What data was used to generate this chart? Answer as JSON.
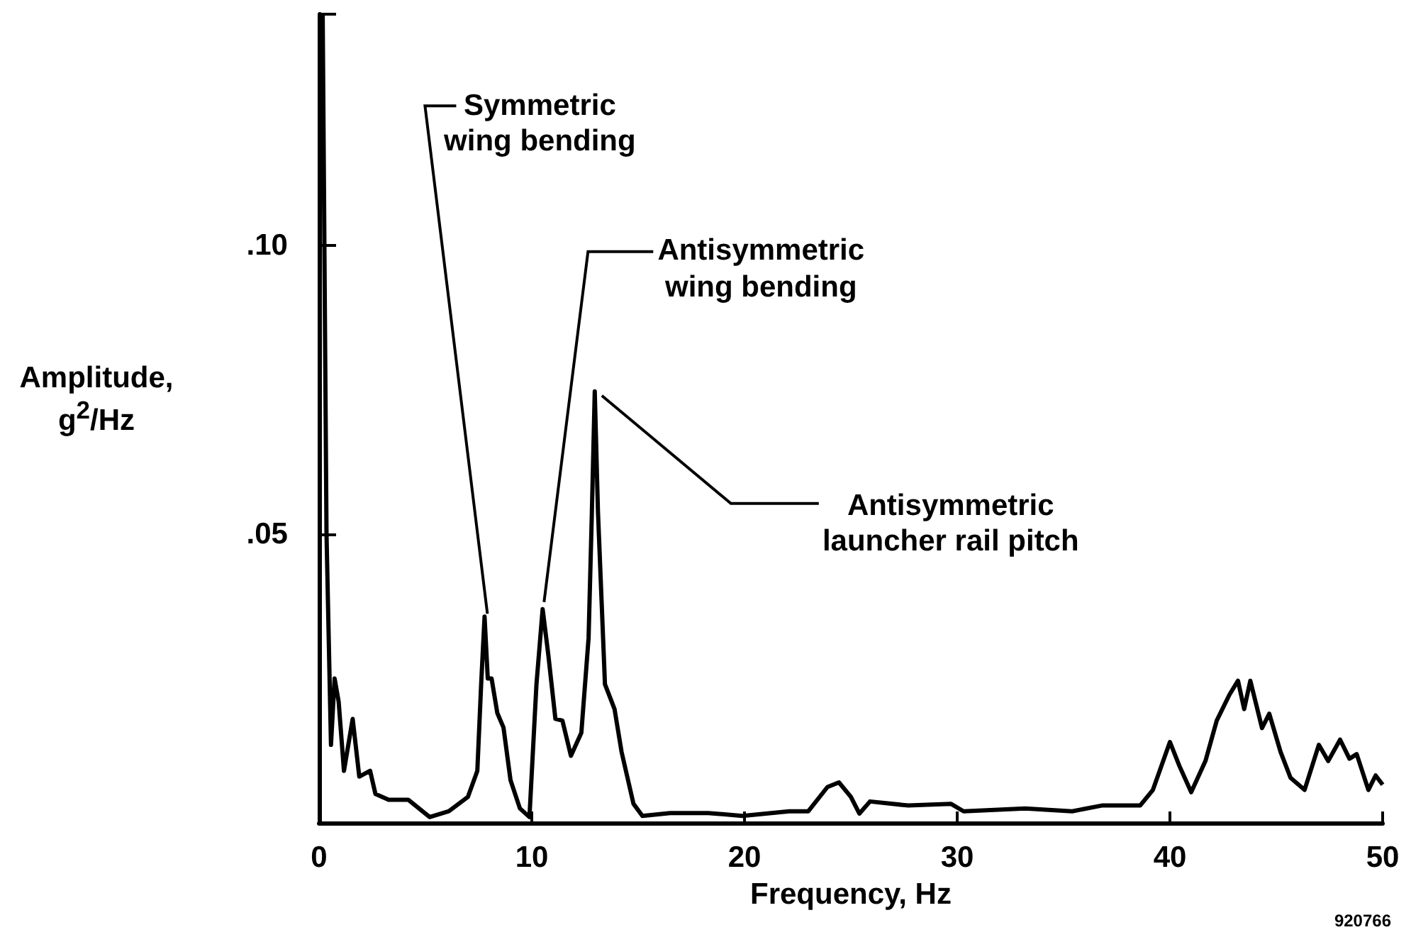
{
  "chart_data": {
    "type": "line",
    "xlabel": "Frequency, Hz",
    "ylabel": "Amplitude,\ng$^{2}$/Hz",
    "color": "#000000",
    "xlim": [
      0,
      50
    ],
    "xticks": [
      0,
      10,
      20,
      30,
      40,
      50
    ],
    "ylim": [
      0,
      0.14
    ],
    "yticks": [
      {
        "value": 0.05,
        "label": ".05"
      },
      {
        "value": 0.1,
        "label": ".10"
      },
      {
        "value": 0.14,
        "label": null
      }
    ],
    "x": [
      0.17,
      0.35,
      0.56,
      0.73,
      0.92,
      1.17,
      1.58,
      1.89,
      2.4,
      2.65,
      3.27,
      4.19,
      5.2,
      6.1,
      7.0,
      7.44,
      7.62,
      7.78,
      7.93,
      8.11,
      8.38,
      8.67,
      9.0,
      9.44,
      9.89,
      10.22,
      10.51,
      10.78,
      11.11,
      11.44,
      11.84,
      12.33,
      12.67,
      12.82,
      12.96,
      13.11,
      13.44,
      13.89,
      14.22,
      14.78,
      15.2,
      16.5,
      18.3,
      19.9,
      22.1,
      23.0,
      23.9,
      24.44,
      25.0,
      25.4,
      25.9,
      27.7,
      29.7,
      30.3,
      33.2,
      35.4,
      36.8,
      38.6,
      39.2,
      40.0,
      40.44,
      41.0,
      41.67,
      42.2,
      42.8,
      43.2,
      43.49,
      43.78,
      44.33,
      44.67,
      45.2,
      45.67,
      46.33,
      47.0,
      47.44,
      48.0,
      48.44,
      48.78,
      49.33,
      49.67,
      50
    ],
    "values": [
      0.14,
      0.05,
      0.0135,
      0.025,
      0.021,
      0.009,
      0.018,
      0.008,
      0.009,
      0.005,
      0.004,
      0.004,
      0.001,
      0.002,
      0.0045,
      0.009,
      0.024,
      0.0357,
      0.025,
      0.025,
      0.019,
      0.0165,
      0.0074,
      0.0025,
      0.001,
      0.024,
      0.037,
      0.029,
      0.018,
      0.0177,
      0.0116,
      0.0156,
      0.032,
      0.053,
      0.0747,
      0.054,
      0.024,
      0.0197,
      0.0123,
      0.0033,
      0.0012,
      0.0017,
      0.0017,
      0.0012,
      0.002,
      0.002,
      0.0062,
      0.007,
      0.0045,
      0.0016,
      0.0037,
      0.003,
      0.0033,
      0.002,
      0.0025,
      0.002,
      0.003,
      0.003,
      0.0057,
      0.014,
      0.0099,
      0.0053,
      0.0107,
      0.0177,
      0.0222,
      0.0246,
      0.0197,
      0.0246,
      0.0164,
      0.0189,
      0.0123,
      0.0078,
      0.0057,
      0.0135,
      0.0107,
      0.0144,
      0.0111,
      0.0119,
      0.0057,
      0.0082,
      0.0066
    ],
    "annotations": [
      {
        "text": "Symmetric\nwing bending",
        "x": 7.78,
        "y": 0.0357
      },
      {
        "text": "Antisymmetric\nwing bending",
        "x": 10.51,
        "y": 0.037
      },
      {
        "text": "Antisymmetric\nlauncher rail pitch",
        "x": 12.96,
        "y": 0.0747
      },
      "920766"
    ]
  }
}
